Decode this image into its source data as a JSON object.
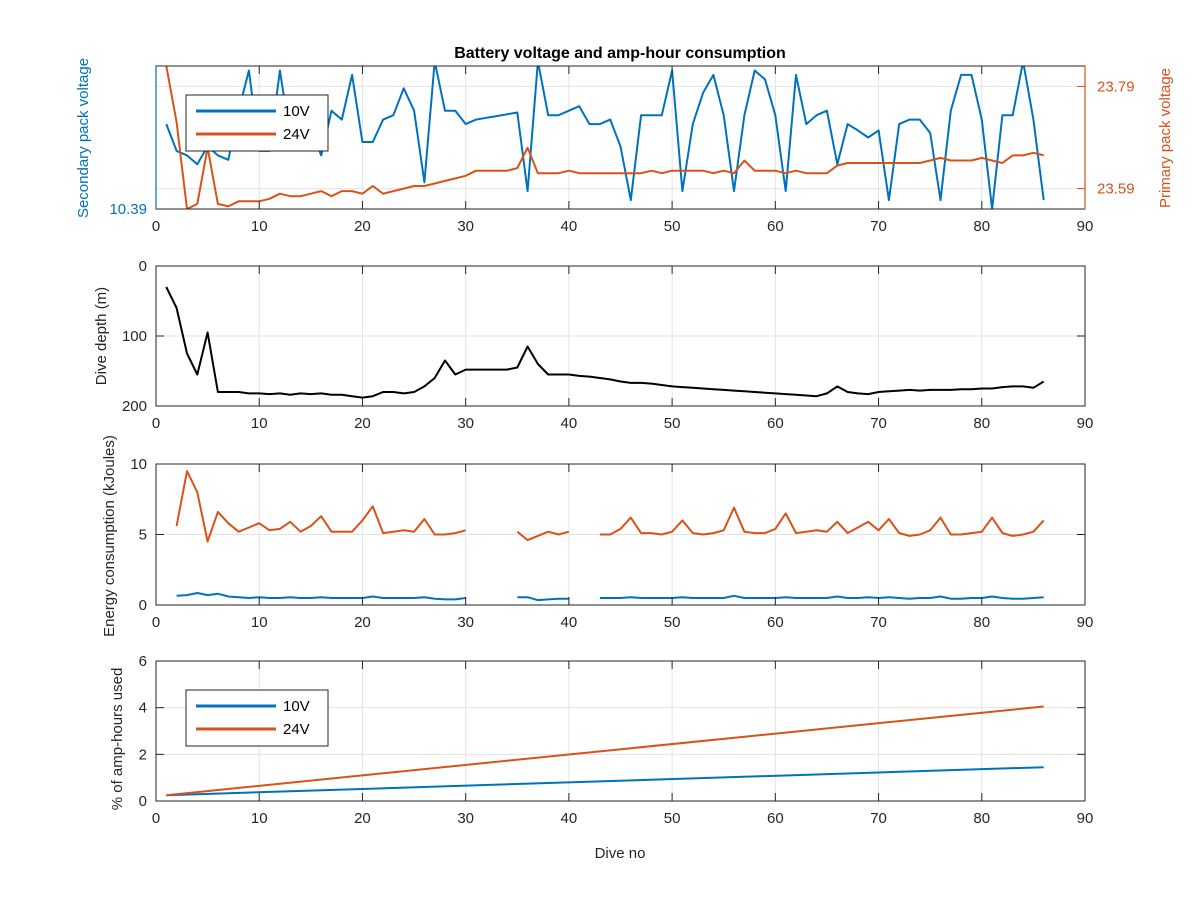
{
  "chart_data": [
    {
      "type": "line",
      "title": "Battery voltage and amp-hour consumption",
      "xlabel": "",
      "ylabel_left": "Secondary pack voltage",
      "ylabel_right": "Primary pack voltage",
      "xlim": [
        0,
        90
      ],
      "xticks": [
        "0",
        "10",
        "20",
        "30",
        "40",
        "50",
        "60",
        "70",
        "80",
        "90"
      ],
      "ylim_left": [
        10.39,
        10.55
      ],
      "ylim_right": [
        23.55,
        23.83
      ],
      "yticks_left": [
        "10.39"
      ],
      "yticks_right": [
        "23.59",
        "23.79"
      ],
      "grid": true,
      "legend": {
        "placement": "top-left",
        "entries": [
          "10V",
          "24V"
        ]
      },
      "series": [
        {
          "name": "10V",
          "axis": "left",
          "color": "#0072BD",
          "x": [
            1,
            2,
            3,
            4,
            5,
            6,
            7,
            8,
            9,
            10,
            11,
            12,
            13,
            14,
            15,
            16,
            17,
            18,
            19,
            20,
            21,
            22,
            23,
            24,
            25,
            26,
            27,
            28,
            29,
            30,
            31,
            32,
            33,
            34,
            35,
            36,
            37,
            38,
            39,
            40,
            41,
            42,
            43,
            44,
            45,
            46,
            47,
            48,
            49,
            50,
            51,
            52,
            53,
            54,
            55,
            56,
            57,
            58,
            59,
            60,
            61,
            62,
            63,
            64,
            65,
            66,
            67,
            68,
            69,
            70,
            71,
            72,
            73,
            74,
            75,
            76,
            77,
            78,
            79,
            80,
            81,
            82,
            83,
            84,
            85,
            86
          ],
          "values": [
            10.485,
            10.455,
            10.45,
            10.44,
            10.46,
            10.45,
            10.445,
            10.5,
            10.545,
            10.455,
            10.455,
            10.545,
            10.47,
            10.48,
            10.48,
            10.45,
            10.5,
            10.49,
            10.54,
            10.465,
            10.465,
            10.49,
            10.495,
            10.525,
            10.5,
            10.42,
            10.555,
            10.5,
            10.5,
            10.485,
            10.49,
            10.492,
            10.494,
            10.496,
            10.498,
            10.41,
            10.555,
            10.495,
            10.495,
            10.5,
            10.505,
            10.485,
            10.485,
            10.49,
            10.46,
            10.4,
            10.495,
            10.495,
            10.495,
            10.545,
            10.41,
            10.485,
            10.52,
            10.54,
            10.495,
            10.41,
            10.495,
            10.545,
            10.535,
            10.495,
            10.41,
            10.54,
            10.485,
            10.495,
            10.5,
            10.44,
            10.485,
            10.478,
            10.47,
            10.478,
            10.4,
            10.485,
            10.49,
            10.49,
            10.475,
            10.4,
            10.5,
            10.54,
            10.54,
            10.49,
            10.39,
            10.495,
            10.495,
            10.555,
            10.49,
            10.4
          ]
        },
        {
          "name": "24V",
          "axis": "right",
          "color": "#D95319",
          "x": [
            1,
            2,
            3,
            4,
            5,
            6,
            7,
            8,
            9,
            10,
            11,
            12,
            13,
            14,
            15,
            16,
            17,
            18,
            19,
            20,
            21,
            22,
            23,
            24,
            25,
            26,
            27,
            28,
            29,
            30,
            31,
            32,
            33,
            34,
            35,
            36,
            37,
            38,
            39,
            40,
            41,
            42,
            43,
            44,
            45,
            46,
            47,
            48,
            49,
            50,
            51,
            52,
            53,
            54,
            55,
            56,
            57,
            58,
            59,
            60,
            61,
            62,
            63,
            64,
            65,
            66,
            67,
            68,
            69,
            70,
            71,
            72,
            73,
            74,
            75,
            76,
            77,
            78,
            79,
            80,
            81,
            82,
            83,
            84,
            85,
            86
          ],
          "values": [
            23.83,
            23.72,
            23.55,
            23.56,
            23.67,
            23.56,
            23.555,
            23.565,
            23.565,
            23.565,
            23.57,
            23.58,
            23.575,
            23.575,
            23.58,
            23.585,
            23.575,
            23.585,
            23.585,
            23.58,
            23.595,
            23.58,
            23.585,
            23.59,
            23.595,
            23.595,
            23.6,
            23.605,
            23.61,
            23.615,
            23.625,
            23.625,
            23.625,
            23.625,
            23.63,
            23.67,
            23.62,
            23.62,
            23.62,
            23.625,
            23.62,
            23.62,
            23.62,
            23.62,
            23.62,
            23.62,
            23.62,
            23.625,
            23.62,
            23.625,
            23.625,
            23.625,
            23.625,
            23.62,
            23.625,
            23.62,
            23.645,
            23.625,
            23.625,
            23.625,
            23.62,
            23.625,
            23.62,
            23.62,
            23.62,
            23.635,
            23.64,
            23.64,
            23.64,
            23.64,
            23.64,
            23.64,
            23.64,
            23.64,
            23.645,
            23.65,
            23.645,
            23.645,
            23.645,
            23.65,
            23.645,
            23.64,
            23.655,
            23.655,
            23.66,
            23.655
          ]
        }
      ]
    },
    {
      "type": "line",
      "title": "",
      "xlabel": "",
      "ylabel": "Dive depth (m)",
      "xlim": [
        0,
        90
      ],
      "ylim": [
        0,
        200
      ],
      "y_reversed": true,
      "xticks": [
        "0",
        "10",
        "20",
        "30",
        "40",
        "50",
        "60",
        "70",
        "80",
        "90"
      ],
      "yticks": [
        "0",
        "100",
        "200"
      ],
      "grid": true,
      "series": [
        {
          "color": "#000000",
          "x": [
            1,
            2,
            3,
            4,
            5,
            6,
            7,
            8,
            9,
            10,
            11,
            12,
            13,
            14,
            15,
            16,
            17,
            18,
            19,
            20,
            21,
            22,
            23,
            24,
            25,
            26,
            27,
            28,
            29,
            30,
            31,
            32,
            33,
            34,
            35,
            36,
            37,
            38,
            39,
            40,
            41,
            42,
            43,
            44,
            45,
            46,
            47,
            48,
            49,
            50,
            51,
            52,
            53,
            54,
            55,
            56,
            57,
            58,
            59,
            60,
            61,
            62,
            63,
            64,
            65,
            66,
            67,
            68,
            69,
            70,
            71,
            72,
            73,
            74,
            75,
            76,
            77,
            78,
            79,
            80,
            81,
            82,
            83,
            84,
            85,
            86
          ],
          "values": [
            30,
            60,
            125,
            155,
            95,
            180,
            180,
            180,
            182,
            182,
            183,
            182,
            184,
            182,
            183,
            182,
            184,
            184,
            186,
            188,
            186,
            180,
            180,
            182,
            180,
            172,
            160,
            135,
            155,
            148,
            148,
            148,
            148,
            148,
            145,
            115,
            140,
            155,
            155,
            155,
            157,
            158,
            160,
            162,
            165,
            167,
            167,
            168,
            170,
            172,
            173,
            174,
            175,
            176,
            177,
            178,
            179,
            180,
            181,
            182,
            183,
            184,
            185,
            186,
            182,
            172,
            180,
            182,
            183,
            180,
            179,
            178,
            177,
            178,
            177,
            177,
            177,
            176,
            176,
            175,
            175,
            173,
            172,
            172,
            174,
            165
          ]
        }
      ]
    },
    {
      "type": "line",
      "title": "",
      "xlabel": "",
      "ylabel": "Energy consumption (kJoules)",
      "xlim": [
        0,
        90
      ],
      "ylim": [
        0,
        10
      ],
      "xticks": [
        "0",
        "10",
        "20",
        "30",
        "40",
        "50",
        "60",
        "70",
        "80",
        "90"
      ],
      "yticks": [
        "0",
        "5",
        "10"
      ],
      "grid": true,
      "series": [
        {
          "color": "#D95319",
          "segments": [
            {
              "x": [
                2,
                3,
                4,
                5,
                6,
                7,
                8,
                9,
                10,
                11,
                12,
                13,
                14,
                15,
                16,
                17,
                18,
                19,
                20,
                21,
                22,
                23,
                24,
                25,
                26,
                27,
                28,
                29,
                30
              ],
              "values": [
                5.6,
                9.5,
                8,
                4.5,
                6.6,
                5.8,
                5.2,
                5.5,
                5.8,
                5.3,
                5.4,
                5.9,
                5.2,
                5.6,
                6.3,
                5.2,
                5.2,
                5.2,
                6,
                7,
                5.1,
                5.2,
                5.3,
                5.2,
                6.1,
                5,
                5,
                5.1,
                5.3
              ]
            },
            {
              "x": [
                35,
                36,
                37,
                38,
                39,
                40
              ],
              "values": [
                5.2,
                4.6,
                4.9,
                5.2,
                5,
                5.2
              ]
            },
            {
              "x": [
                43,
                44,
                45,
                46,
                47,
                48,
                49,
                50,
                51,
                52,
                53,
                54,
                55,
                56,
                57,
                58,
                59,
                60,
                61,
                62,
                63,
                64,
                65,
                66,
                67,
                68,
                69,
                70,
                71,
                72,
                73,
                74,
                75,
                76,
                77,
                78,
                79,
                80,
                81,
                82,
                83,
                84,
                85,
                86
              ],
              "values": [
                5,
                5,
                5.4,
                6.2,
                5.1,
                5.1,
                5,
                5.2,
                6,
                5.1,
                5,
                5.1,
                5.3,
                6.9,
                5.2,
                5.1,
                5.1,
                5.4,
                6.5,
                5.1,
                5.2,
                5.3,
                5.2,
                5.9,
                5.1,
                5.5,
                5.9,
                5.3,
                6.1,
                5.1,
                4.9,
                5,
                5.3,
                6.2,
                5,
                5,
                5.1,
                5.2,
                6.2,
                5.1,
                4.9,
                5,
                5.2,
                6
              ]
            }
          ]
        },
        {
          "color": "#0072BD",
          "segments": [
            {
              "x": [
                2,
                3,
                4,
                5,
                6,
                7,
                8,
                9,
                10,
                11,
                12,
                13,
                14,
                15,
                16,
                17,
                18,
                19,
                20,
                21,
                22,
                23,
                24,
                25,
                26,
                27,
                28,
                29,
                30
              ],
              "values": [
                0.65,
                0.7,
                0.85,
                0.7,
                0.8,
                0.6,
                0.55,
                0.5,
                0.55,
                0.5,
                0.5,
                0.55,
                0.5,
                0.5,
                0.55,
                0.5,
                0.5,
                0.5,
                0.5,
                0.6,
                0.5,
                0.5,
                0.5,
                0.5,
                0.55,
                0.45,
                0.4,
                0.4,
                0.5
              ]
            },
            {
              "x": [
                35,
                36,
                37,
                38,
                39,
                40
              ],
              "values": [
                0.55,
                0.55,
                0.35,
                0.4,
                0.45,
                0.45
              ]
            },
            {
              "x": [
                43,
                44,
                45,
                46,
                47,
                48,
                49,
                50,
                51,
                52,
                53,
                54,
                55,
                56,
                57,
                58,
                59,
                60,
                61,
                62,
                63,
                64,
                65,
                66,
                67,
                68,
                69,
                70,
                71,
                72,
                73,
                74,
                75,
                76,
                77,
                78,
                79,
                80,
                81,
                82,
                83,
                84,
                85,
                86
              ],
              "values": [
                0.5,
                0.5,
                0.5,
                0.55,
                0.5,
                0.5,
                0.5,
                0.5,
                0.55,
                0.5,
                0.5,
                0.5,
                0.5,
                0.65,
                0.5,
                0.5,
                0.5,
                0.5,
                0.55,
                0.5,
                0.5,
                0.5,
                0.5,
                0.6,
                0.5,
                0.5,
                0.55,
                0.5,
                0.55,
                0.5,
                0.45,
                0.5,
                0.5,
                0.6,
                0.45,
                0.45,
                0.5,
                0.5,
                0.6,
                0.5,
                0.45,
                0.45,
                0.5,
                0.55
              ]
            }
          ]
        }
      ]
    },
    {
      "type": "line",
      "title": "",
      "xlabel": "Dive no",
      "ylabel": "% of amp-hours used",
      "xlim": [
        0,
        90
      ],
      "ylim": [
        0,
        6
      ],
      "xticks": [
        "0",
        "10",
        "20",
        "30",
        "40",
        "50",
        "60",
        "70",
        "80",
        "90"
      ],
      "yticks": [
        "0",
        "2",
        "4",
        "6"
      ],
      "grid": true,
      "legend": {
        "placement": "top-left",
        "entries": [
          "10V",
          "24V"
        ]
      },
      "series": [
        {
          "name": "10V",
          "color": "#0072BD",
          "x": [
            1,
            86
          ],
          "values": [
            0.25,
            1.45
          ]
        },
        {
          "name": "24V",
          "color": "#D95319",
          "x": [
            1,
            86
          ],
          "values": [
            0.25,
            4.05
          ]
        }
      ]
    }
  ]
}
